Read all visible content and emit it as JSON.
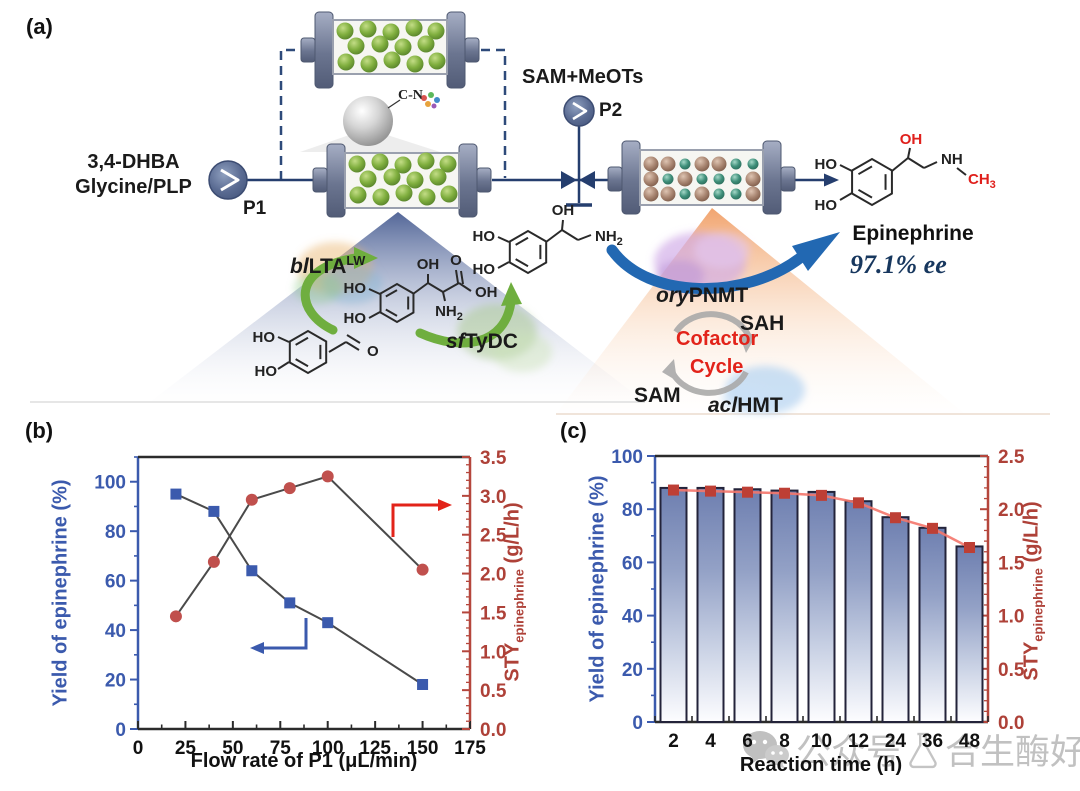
{
  "panels": {
    "a": "(a)",
    "b": "(b)",
    "c": "(c)"
  },
  "panel_a": {
    "feed_line1": "3,4-DHBA",
    "feed_line2": "Glycine/PLP",
    "pump1_label": "P1",
    "pump2_label": "P2",
    "pump2_feed": "SAM+MeOTs",
    "carrier_label": "C-N",
    "enzymes": {
      "lta_prefix": "bl",
      "lta_name": "LTA",
      "lta_sup": "LW",
      "tydc_prefix": "sf",
      "tydc_name": "TyDC",
      "pnmt_prefix": "ory",
      "pnmt_name": "PNMT",
      "hmt_prefix": "acl",
      "hmt_name": "HMT"
    },
    "cofactor": {
      "sah": "SAH",
      "sam": "SAM",
      "cycle_line1": "Cofactor",
      "cycle_line2": "Cycle"
    },
    "product": {
      "name": "Epinephrine",
      "ee": "97.1% ee"
    },
    "atoms": {
      "ho": "HO",
      "oh": "OH",
      "o": "O",
      "nh": "NH",
      "ch": "CH",
      "sub2": "2",
      "sub3": "3"
    },
    "colors": {
      "line": "#253e6e",
      "green_arrow": "#6fae3f",
      "blue_arrow": "#2268b2",
      "cofactor_red": "#e2231a"
    }
  },
  "watermark": {
    "prefix": "公众号",
    "name": "合生酶好"
  },
  "chart_data": [
    {
      "id": "b",
      "type": "line",
      "xlabel": "Flow rate of P1 (μL/min)",
      "ylabel_left": "Yield of epinephrine (%)",
      "ylabel_right": {
        "main": "STY",
        "sub": "epinephrine",
        "rest": " (g/L/h)"
      },
      "xlim": [
        0,
        175
      ],
      "ylim_left": [
        0,
        110
      ],
      "ylim_right": [
        0,
        3.5
      ],
      "xticks": [
        0,
        25,
        50,
        75,
        100,
        125,
        150,
        175
      ],
      "yticks_left": [
        0,
        20,
        40,
        60,
        80,
        100
      ],
      "yticks_right": [
        "0.0",
        "0.5",
        "1.0",
        "1.5",
        "2.0",
        "2.5",
        "3.0",
        "3.5"
      ],
      "x": [
        20,
        40,
        60,
        80,
        100,
        150
      ],
      "series": [
        {
          "name": "Yield of epinephrine",
          "axis": "left",
          "marker": "square",
          "color": "#3b5aad",
          "values": [
            95,
            88,
            64,
            51,
            43,
            18
          ]
        },
        {
          "name": "STY epinephrine",
          "axis": "right",
          "marker": "circle",
          "color": "#c0504d",
          "values": [
            1.45,
            2.15,
            2.95,
            3.1,
            3.25,
            2.05
          ]
        }
      ],
      "legend_position": "none",
      "grid": false
    },
    {
      "id": "c",
      "type": "bar",
      "xlabel": "Reaction time (h)",
      "ylabel_left": "Yield of epinephrine (%)",
      "ylabel_right": {
        "main": "STY",
        "sub": "epinephrine",
        "rest": " (g/L/h)"
      },
      "categories": [
        "2",
        "4",
        "6",
        "8",
        "10",
        "12",
        "24",
        "36",
        "48"
      ],
      "ylim_left": [
        0,
        100
      ],
      "ylim_right": [
        0,
        2.5
      ],
      "yticks_left": [
        0,
        20,
        40,
        60,
        80,
        100
      ],
      "yticks_right": [
        "0.0",
        "0.5",
        "1.0",
        "1.5",
        "2.0",
        "2.5"
      ],
      "bars": {
        "name": "Yield of epinephrine",
        "axis": "left",
        "values": [
          88,
          88,
          87.5,
          87,
          86.5,
          83,
          77,
          73,
          66
        ]
      },
      "line": {
        "name": "STY epinephrine",
        "axis": "right",
        "color": "#f4756b",
        "marker_color": "#bd3f35",
        "values": [
          2.18,
          2.17,
          2.16,
          2.15,
          2.13,
          2.06,
          1.92,
          1.82,
          1.64
        ]
      },
      "legend_position": "none",
      "grid": false
    }
  ]
}
